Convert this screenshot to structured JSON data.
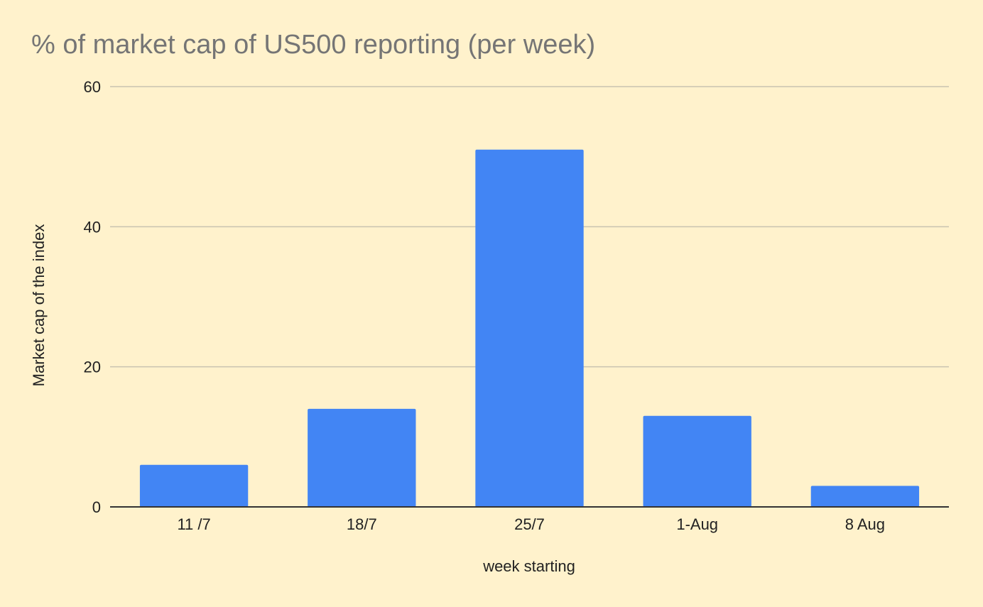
{
  "chart_data": {
    "type": "bar",
    "title": "% of market cap of US500 reporting (per week)",
    "xlabel": "week starting",
    "ylabel": "Market cap of the index",
    "categories": [
      "11 /7",
      "18/7",
      "25/7",
      "1-Aug",
      "8 Aug"
    ],
    "values": [
      6,
      14,
      51,
      13,
      3
    ],
    "ylim": [
      0,
      60
    ],
    "yticks": [
      0,
      20,
      40,
      60
    ],
    "grid": true,
    "legend": "none"
  },
  "colors": {
    "background": "#fff2cc",
    "bar": "#4285f4",
    "gridline": "#c9c3b0",
    "baseline": "#333333",
    "title": "#757575",
    "text": "#222222"
  }
}
